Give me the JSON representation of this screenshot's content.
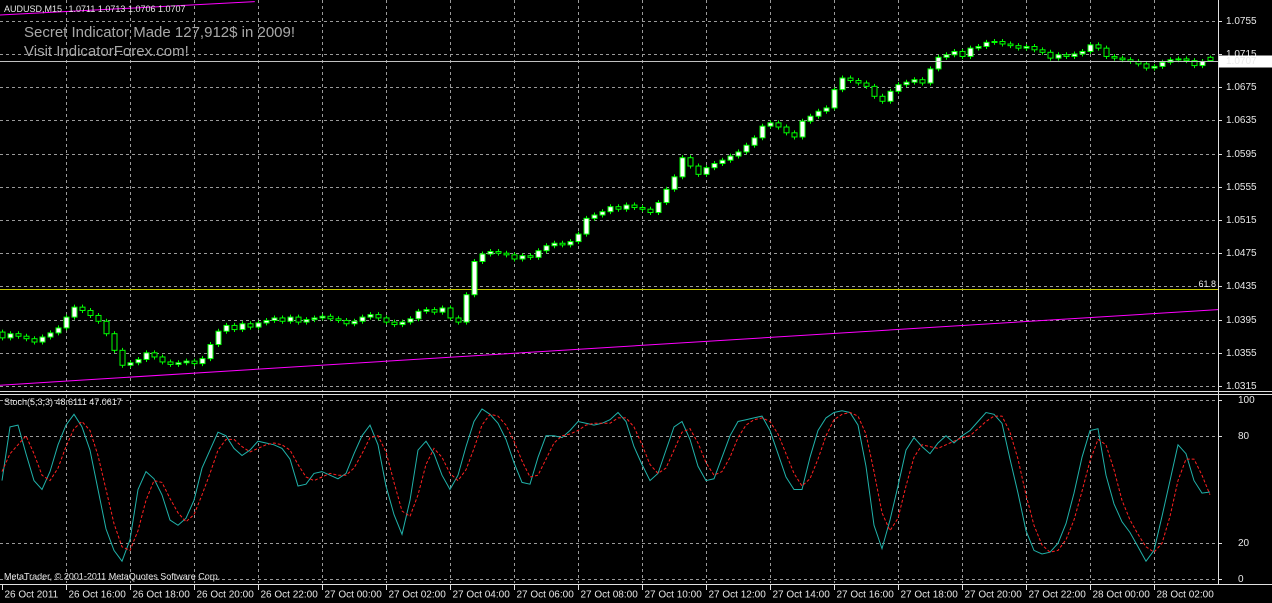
{
  "chart_data": {
    "type": "candlestick",
    "title": "AUDUSD,M15",
    "watermark": [
      "Secret Indicator Made 127,912$ in 2009!",
      "Visit IndicatorForex.com!"
    ],
    "open": [
      1.038,
      1.0373,
      1.0378,
      1.0375,
      1.0372,
      1.0368,
      1.0374,
      1.0379,
      1.0385,
      1.0398,
      1.041,
      1.0406,
      1.04,
      1.0393,
      1.0378,
      1.0358,
      1.034,
      1.0343,
      1.0347,
      1.0355,
      1.035,
      1.0344,
      1.0341,
      1.0343,
      1.0345,
      1.0342,
      1.0348,
      1.0365,
      1.0381,
      1.0388,
      1.0383,
      1.039,
      1.0386,
      1.0391,
      1.0394,
      1.0397,
      1.0393,
      1.0398,
      1.0392,
      1.0395,
      1.0397,
      1.0399,
      1.0396,
      1.0394,
      1.039,
      1.0393,
      1.0398,
      1.0401,
      1.0397,
      1.0392,
      1.0389,
      1.0392,
      1.0396,
      1.0405,
      1.0407,
      1.0404,
      1.0409,
      1.0397,
      1.0392,
      1.0425,
      1.0465,
      1.0474,
      1.0477,
      1.0475,
      1.0473,
      1.0468,
      1.0472,
      1.047,
      1.0478,
      1.0484,
      1.0487,
      1.0485,
      1.0489,
      1.0498,
      1.0517,
      1.0521,
      1.0525,
      1.0531,
      1.0528,
      1.0533,
      1.053,
      1.0528,
      1.0524,
      1.0536,
      1.0552,
      1.0567,
      1.059,
      1.058,
      1.057,
      1.0578,
      1.0583,
      1.0587,
      1.0592,
      1.0597,
      1.0605,
      1.0614,
      1.0628,
      1.0632,
      1.0627,
      1.062,
      1.0615,
      1.0634,
      1.064,
      1.0646,
      1.065,
      1.0672,
      1.0686,
      1.0683,
      1.068,
      1.0676,
      1.0664,
      1.0658,
      1.067,
      1.0678,
      1.0681,
      1.0684,
      1.068,
      1.0697,
      1.0711,
      1.0714,
      1.0718,
      1.0712,
      1.0722,
      1.0724,
      1.0729,
      1.073,
      1.0727,
      1.0725,
      1.0722,
      1.0724,
      1.072,
      1.0717,
      1.071,
      1.0714,
      1.0712,
      1.0715,
      1.0718,
      1.0726,
      1.0722,
      1.0712,
      1.071,
      1.0708,
      1.0706,
      1.0703,
      1.0698,
      1.07,
      1.0705,
      1.0708,
      1.0709,
      1.0707,
      1.0701,
      1.0711
    ],
    "high": [
      1.0383,
      1.0381,
      1.0381,
      1.0378,
      1.0375,
      1.0377,
      1.0382,
      1.0388,
      1.0401,
      1.0413,
      1.0413,
      1.0409,
      1.0403,
      1.0396,
      1.0381,
      1.0361,
      1.0346,
      1.035,
      1.0358,
      1.0358,
      1.0353,
      1.0347,
      1.0346,
      1.0348,
      1.0348,
      1.0351,
      1.0368,
      1.0384,
      1.0391,
      1.0391,
      1.0393,
      1.0393,
      1.0394,
      1.0397,
      1.04,
      1.04,
      1.0401,
      1.0401,
      1.0398,
      1.04,
      1.0402,
      1.0402,
      1.0399,
      1.0397,
      1.0396,
      1.0401,
      1.0404,
      1.0404,
      1.04,
      1.0395,
      1.0395,
      1.0399,
      1.0408,
      1.041,
      1.041,
      1.0412,
      1.0412,
      1.04,
      1.0428,
      1.0468,
      1.0477,
      1.048,
      1.048,
      1.0478,
      1.0476,
      1.0475,
      1.0475,
      1.0481,
      1.0487,
      1.049,
      1.049,
      1.0492,
      1.0501,
      1.052,
      1.0524,
      1.0528,
      1.0534,
      1.0534,
      1.0536,
      1.0536,
      1.0533,
      1.0531,
      1.0539,
      1.0555,
      1.057,
      1.0593,
      1.0593,
      1.0583,
      1.0581,
      1.0586,
      1.059,
      1.0595,
      1.06,
      1.0608,
      1.0617,
      1.0631,
      1.0635,
      1.0635,
      1.063,
      1.0623,
      1.0637,
      1.0643,
      1.0649,
      1.0653,
      1.0675,
      1.0689,
      1.0689,
      1.0686,
      1.0683,
      1.0679,
      1.0667,
      1.0673,
      1.0681,
      1.0684,
      1.0687,
      1.0687,
      1.07,
      1.0714,
      1.0717,
      1.0721,
      1.0721,
      1.0725,
      1.0727,
      1.0732,
      1.0733,
      1.0733,
      1.073,
      1.0728,
      1.0727,
      1.0727,
      1.0723,
      1.072,
      1.0717,
      1.0717,
      1.0718,
      1.0721,
      1.0729,
      1.0729,
      1.0725,
      1.0715,
      1.0713,
      1.0711,
      1.0709,
      1.0706,
      1.0703,
      1.0708,
      1.0711,
      1.0712,
      1.0712,
      1.071,
      1.0709,
      1.0713
    ],
    "low": [
      1.037,
      1.037,
      1.0372,
      1.0369,
      1.0365,
      1.0365,
      1.0371,
      1.0376,
      1.0382,
      1.0395,
      1.0403,
      1.0397,
      1.039,
      1.0375,
      1.0355,
      1.0337,
      1.0337,
      1.034,
      1.0344,
      1.0347,
      1.0341,
      1.0338,
      1.0338,
      1.034,
      1.0339,
      1.0339,
      1.0345,
      1.0362,
      1.0378,
      1.038,
      1.038,
      1.0383,
      1.0383,
      1.0388,
      1.0391,
      1.039,
      1.039,
      1.0389,
      1.0389,
      1.0392,
      1.0394,
      1.0393,
      1.0391,
      1.0387,
      1.0387,
      1.039,
      1.0395,
      1.0394,
      1.0389,
      1.0386,
      1.0386,
      1.0389,
      1.0393,
      1.0402,
      1.0401,
      1.0401,
      1.0394,
      1.0389,
      1.0389,
      1.0422,
      1.0462,
      1.0471,
      1.0472,
      1.047,
      1.0465,
      1.0465,
      1.0467,
      1.0467,
      1.0475,
      1.0481,
      1.0482,
      1.0482,
      1.0486,
      1.0495,
      1.0514,
      1.0518,
      1.0522,
      1.0525,
      1.0525,
      1.0527,
      1.0525,
      1.0521,
      1.0521,
      1.0533,
      1.0549,
      1.0564,
      1.0577,
      1.0567,
      1.0567,
      1.0575,
      1.058,
      1.0584,
      1.0589,
      1.0594,
      1.0602,
      1.0611,
      1.0625,
      1.0624,
      1.0617,
      1.0612,
      1.0612,
      1.0631,
      1.0637,
      1.0643,
      1.0647,
      1.0669,
      1.068,
      1.0677,
      1.0673,
      1.0661,
      1.0655,
      1.0655,
      1.0667,
      1.0675,
      1.0678,
      1.0677,
      1.0677,
      1.0694,
      1.0708,
      1.0711,
      1.0709,
      1.0709,
      1.0719,
      1.0721,
      1.0726,
      1.0724,
      1.0722,
      1.0719,
      1.0719,
      1.0717,
      1.0714,
      1.0707,
      1.0707,
      1.0709,
      1.0709,
      1.0712,
      1.0715,
      1.0719,
      1.0709,
      1.0707,
      1.0705,
      1.0703,
      1.07,
      1.0695,
      1.0695,
      1.0697,
      1.0702,
      1.0705,
      1.0704,
      1.0698,
      1.0698,
      1.0706
    ],
    "close": [
      1.0373,
      1.0378,
      1.0375,
      1.0372,
      1.0368,
      1.0374,
      1.0379,
      1.0385,
      1.0398,
      1.041,
      1.0406,
      1.04,
      1.0393,
      1.0378,
      1.0358,
      1.034,
      1.0343,
      1.0347,
      1.0355,
      1.035,
      1.0344,
      1.0341,
      1.0343,
      1.0345,
      1.0342,
      1.0348,
      1.0365,
      1.0381,
      1.0388,
      1.0383,
      1.039,
      1.0386,
      1.0391,
      1.0394,
      1.0397,
      1.0393,
      1.0398,
      1.0392,
      1.0395,
      1.0397,
      1.0399,
      1.0396,
      1.0394,
      1.039,
      1.0393,
      1.0398,
      1.0401,
      1.0397,
      1.0392,
      1.0389,
      1.0392,
      1.0396,
      1.0405,
      1.0407,
      1.0404,
      1.0409,
      1.0397,
      1.0392,
      1.0425,
      1.0465,
      1.0474,
      1.0477,
      1.0475,
      1.0473,
      1.0468,
      1.0472,
      1.047,
      1.0478,
      1.0484,
      1.0487,
      1.0485,
      1.0489,
      1.0498,
      1.0517,
      1.0521,
      1.0525,
      1.0531,
      1.0528,
      1.0533,
      1.053,
      1.0528,
      1.0524,
      1.0536,
      1.0552,
      1.0567,
      1.059,
      1.058,
      1.057,
      1.0578,
      1.0583,
      1.0587,
      1.0592,
      1.0597,
      1.0605,
      1.0614,
      1.0628,
      1.0632,
      1.0627,
      1.062,
      1.0615,
      1.0634,
      1.064,
      1.0646,
      1.065,
      1.0672,
      1.0686,
      1.0683,
      1.068,
      1.0676,
      1.0664,
      1.0658,
      1.067,
      1.0678,
      1.0681,
      1.0684,
      1.068,
      1.0697,
      1.0711,
      1.0714,
      1.0718,
      1.0712,
      1.0722,
      1.0724,
      1.0729,
      1.073,
      1.0727,
      1.0725,
      1.0722,
      1.0724,
      1.072,
      1.0717,
      1.071,
      1.0714,
      1.0712,
      1.0715,
      1.0718,
      1.0726,
      1.0722,
      1.0712,
      1.071,
      1.0708,
      1.0706,
      1.0703,
      1.0698,
      1.07,
      1.0705,
      1.0708,
      1.0709,
      1.0707,
      1.0701,
      1.0706,
      1.0707
    ],
    "colors": {
      "bull": "#ffffff",
      "bear": "#000000",
      "wick": "#00ff00",
      "price_line": "#c0c0c0",
      "grid": "#9a9a9a"
    },
    "xlim": [
      -0.25,
      152
    ],
    "ylim": [
      1.0309,
      1.078
    ],
    "yticks": [
      1.0315,
      1.0355,
      1.0395,
      1.0435,
      1.0475,
      1.0515,
      1.0555,
      1.0595,
      1.0635,
      1.0675,
      1.0715,
      1.0755
    ],
    "xticks": [
      {
        "value": 0,
        "label": "26 Oct 2011"
      },
      {
        "value": 8,
        "label": "26 Oct 16:00"
      },
      {
        "value": 16,
        "label": "26 Oct 18:00"
      },
      {
        "value": 24,
        "label": "26 Oct 20:00"
      },
      {
        "value": 32,
        "label": "26 Oct 22:00"
      },
      {
        "value": 40,
        "label": "27 Oct 00:00"
      },
      {
        "value": 48,
        "label": "27 Oct 02:00"
      },
      {
        "value": 56,
        "label": "27 Oct 04:00"
      },
      {
        "value": 64,
        "label": "27 Oct 06:00"
      },
      {
        "value": 72,
        "label": "27 Oct 08:00"
      },
      {
        "value": 80,
        "label": "27 Oct 10:00"
      },
      {
        "value": 88,
        "label": "27 Oct 12:00"
      },
      {
        "value": 96,
        "label": "27 Oct 14:00"
      },
      {
        "value": 104,
        "label": "27 Oct 16:00"
      },
      {
        "value": 112,
        "label": "27 Oct 18:00"
      },
      {
        "value": 120,
        "label": "27 Oct 20:00"
      },
      {
        "value": 128,
        "label": "27 Oct 22:00"
      },
      {
        "value": 136,
        "label": "28 Oct 00:00"
      },
      {
        "value": 144,
        "label": "28 Oct 02:00"
      }
    ],
    "grid": true,
    "trendlines": [
      {
        "color": "#ff00ff",
        "x": [
          -0.25,
          152
        ],
        "values": [
          1.0316,
          1.0407
        ]
      },
      {
        "color": "#ff00ff",
        "x": [
          -0.25,
          31.6
        ],
        "values": [
          1.0762,
          1.0778
        ]
      }
    ],
    "fibo": {
      "value": 1.0432,
      "label": "61.8",
      "color": "#c8c800"
    },
    "indicator": {
      "type": "line",
      "title": "Stoch(5,3,3)",
      "ylim": [
        -2.2,
        102.8
      ],
      "yticks": [
        0,
        20,
        80,
        100
      ],
      "series": [
        {
          "color": "#20b2aa",
          "dashed": false,
          "values": [
            55,
            85,
            86,
            70,
            55,
            50,
            60,
            75,
            86,
            92,
            85,
            72,
            50,
            28,
            16,
            10,
            22,
            50,
            60,
            56,
            47,
            33,
            30,
            34,
            44,
            62,
            72,
            82,
            80,
            73,
            69,
            72,
            77,
            76,
            75,
            73,
            67,
            52,
            53,
            59,
            60,
            58,
            56,
            59,
            70,
            80,
            86,
            75,
            52,
            36,
            25,
            44,
            72,
            77,
            70,
            58,
            50,
            58,
            74,
            88,
            95,
            92,
            87,
            78,
            65,
            54,
            53,
            68,
            80,
            80,
            79,
            83,
            88,
            87,
            86,
            87,
            89,
            93,
            88,
            74,
            64,
            55,
            59,
            72,
            85,
            88,
            78,
            63,
            55,
            56,
            68,
            80,
            88,
            89,
            90,
            91,
            83,
            70,
            57,
            50,
            50,
            68,
            83,
            90,
            93,
            94,
            93,
            86,
            63,
            30,
            17,
            33,
            52,
            72,
            79,
            74,
            70,
            76,
            80,
            76,
            80,
            83,
            88,
            93,
            92,
            87,
            67,
            48,
            27,
            16,
            14,
            15,
            20,
            31,
            48,
            68,
            83,
            84,
            58,
            42,
            32,
            26,
            18,
            10,
            16,
            35,
            55,
            75,
            70,
            55,
            48,
            48.6111
          ]
        },
        {
          "color": "#ff2020",
          "dashed": true,
          "values": [
            60,
            70,
            75,
            80,
            70,
            58,
            55,
            62,
            74,
            84,
            88,
            83,
            69,
            50,
            31,
            18,
            16,
            27,
            44,
            55,
            54,
            45,
            37,
            32,
            36,
            47,
            59,
            72,
            78,
            78,
            74,
            71,
            73,
            75,
            76,
            75,
            72,
            64,
            57,
            55,
            57,
            59,
            58,
            58,
            62,
            70,
            79,
            80,
            71,
            54,
            38,
            35,
            47,
            64,
            73,
            68,
            59,
            55,
            61,
            73,
            86,
            92,
            91,
            86,
            77,
            66,
            57,
            58,
            67,
            76,
            80,
            81,
            83,
            86,
            87,
            87,
            87,
            90,
            90,
            85,
            75,
            64,
            59,
            62,
            72,
            82,
            84,
            76,
            65,
            58,
            60,
            68,
            79,
            86,
            89,
            90,
            88,
            81,
            70,
            59,
            52,
            56,
            67,
            80,
            89,
            92,
            93,
            91,
            81,
            60,
            37,
            27,
            34,
            52,
            68,
            75,
            74,
            73,
            75,
            77,
            79,
            80,
            84,
            88,
            91,
            91,
            82,
            67,
            47,
            30,
            19,
            15,
            16,
            22,
            33,
            49,
            66,
            78,
            75,
            61,
            44,
            33,
            25,
            18,
            15,
            20,
            35,
            55,
            67,
            67,
            58,
            47.0617
          ]
        }
      ]
    },
    "copyright": "MetaTrader, © 2001-2011 MetaQuotes Software Corp."
  }
}
